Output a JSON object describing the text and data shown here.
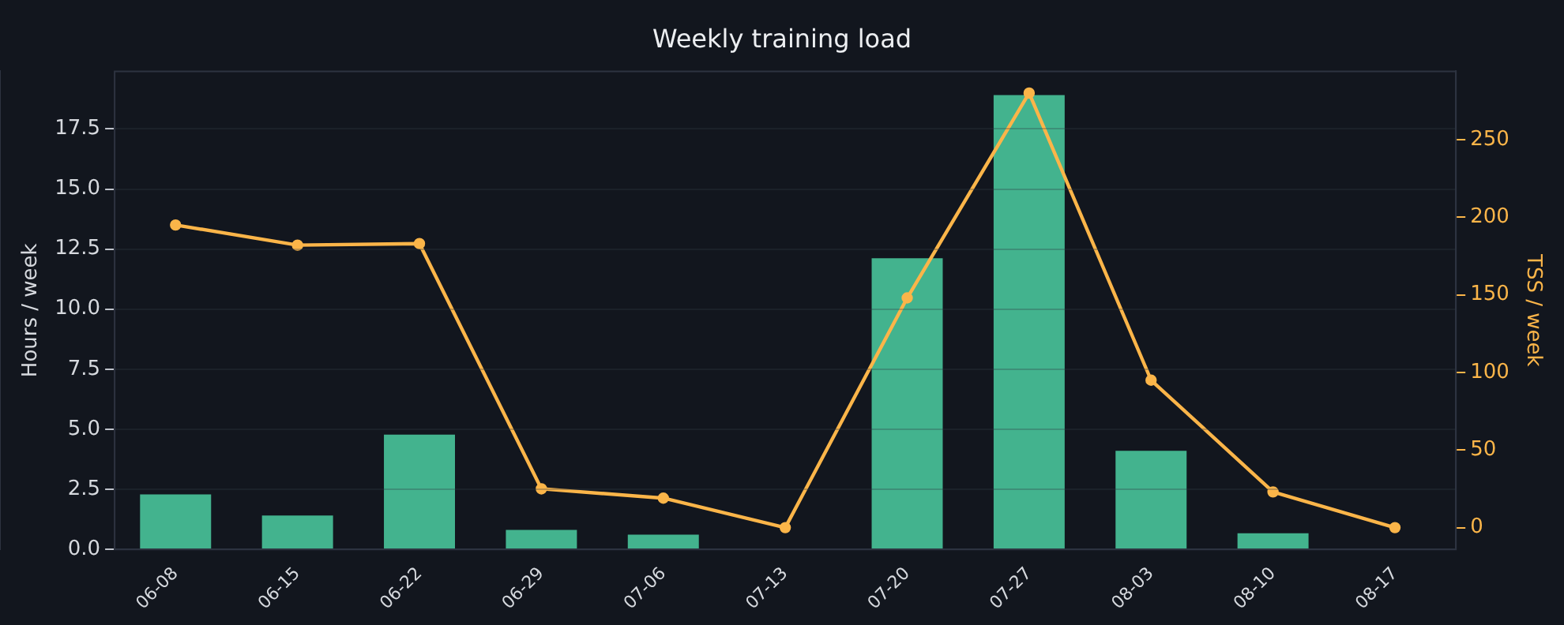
{
  "chart_data": {
    "type": "bar",
    "title": "Weekly training load",
    "ylabel": "Hours / week",
    "y2label": "TSS / week",
    "categories": [
      "06-08",
      "06-15",
      "06-22",
      "06-29",
      "07-06",
      "07-13",
      "07-20",
      "07-27",
      "08-03",
      "08-10",
      "08-17"
    ],
    "series": [
      {
        "color": "#43b38e",
        "values": [
          2.29,
          1.41,
          4.78,
          0.81,
          0.61,
          0,
          12.12,
          18.91,
          4.1,
          0.67,
          0
        ]
      },
      {
        "type": "line",
        "axis": "y2",
        "color": "#fbb549",
        "marker": "circle",
        "values": [
          195,
          182,
          183,
          25,
          19,
          0,
          148,
          280,
          95,
          23,
          0
        ]
      }
    ],
    "ylim": [
      0,
      19.9
    ],
    "yticks": [
      {
        "value": 0,
        "label": "0.0"
      },
      {
        "value": 2.5,
        "label": "2.5"
      },
      {
        "value": 5,
        "label": "5.0"
      },
      {
        "value": 7.5,
        "label": "7.5"
      },
      {
        "value": 10,
        "label": "10.0"
      },
      {
        "value": 12.5,
        "label": "12.5"
      },
      {
        "value": 15,
        "label": "15.0"
      },
      {
        "value": 17.5,
        "label": "17.5"
      }
    ],
    "y2lim": [
      -14,
      294
    ],
    "y2ticks": [
      0,
      50,
      100,
      150,
      200,
      250
    ],
    "grid": "y",
    "legend": false
  }
}
